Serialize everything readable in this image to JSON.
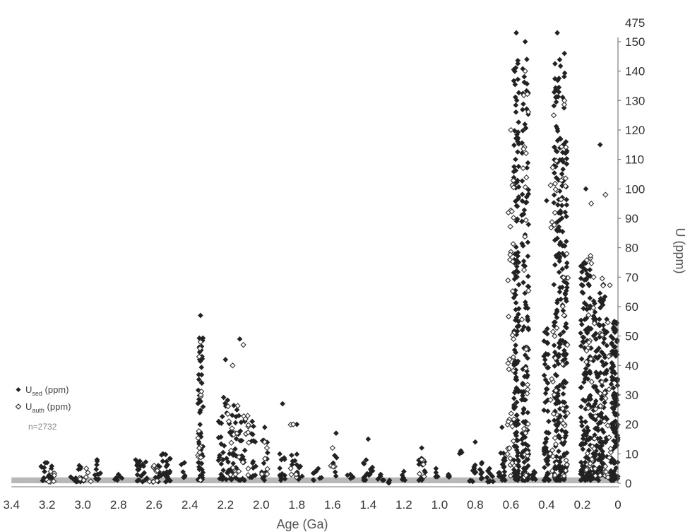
{
  "chart_data": {
    "type": "scatter",
    "xlabel": "Age (Ga)",
    "ylabel": "U (ppm)",
    "x_reversed": true,
    "xlim": [
      0,
      3.4
    ],
    "ylim": [
      0,
      150
    ],
    "x_ticks": [
      "3.4",
      "3.2",
      "3.0",
      "2.8",
      "2.6",
      "2.4",
      "2.2",
      "2.0",
      "1.8",
      "1.6",
      "1.4",
      "1.2",
      "1.0",
      "0.8",
      "0.6",
      "0.4",
      "0.2",
      "0"
    ],
    "y_ticks": [
      "0",
      "10",
      "20",
      "30",
      "40",
      "50",
      "60",
      "70",
      "80",
      "90",
      "100",
      "110",
      "120",
      "130",
      "140",
      "150"
    ],
    "y_break_label": "475",
    "y_axis_side": "right",
    "background_band": {
      "y_from": 0,
      "y_to": 2,
      "color": "#b8b8b8"
    },
    "legend": {
      "position": "left",
      "entries": [
        {
          "prefix": "U",
          "sub": "sed",
          "suffix": " (ppm)",
          "marker": "filled-diamond"
        },
        {
          "prefix": "U",
          "sub": "auth",
          "suffix": " (ppm)",
          "marker": "open-diamond"
        }
      ],
      "n_label": "n=2732"
    },
    "series": [
      {
        "name": "Used (ppm)",
        "marker": "filled-diamond",
        "color": "#222222",
        "clusters": [
          {
            "age": 3.2,
            "spread": 0.04,
            "n": 18,
            "min": 0.5,
            "max": 7,
            "max_pt": 7
          },
          {
            "age": 3.02,
            "spread": 0.05,
            "n": 14,
            "min": 0.5,
            "max": 6,
            "max_pt": 6
          },
          {
            "age": 2.92,
            "spread": 0.02,
            "n": 10,
            "min": 0.5,
            "max": 8,
            "max_pt": 8
          },
          {
            "age": 2.8,
            "spread": 0.02,
            "n": 6,
            "min": 0.5,
            "max": 3,
            "max_pt": 3
          },
          {
            "age": 2.68,
            "spread": 0.04,
            "n": 20,
            "min": 0.5,
            "max": 8,
            "max_pt": 7.5
          },
          {
            "age": 2.55,
            "spread": 0.05,
            "n": 30,
            "min": 0.5,
            "max": 10,
            "max_pt": 10
          },
          {
            "age": 2.43,
            "spread": 0.02,
            "n": 6,
            "min": 1,
            "max": 7,
            "max_pt": 7
          },
          {
            "age": 2.34,
            "spread": 0.015,
            "n": 55,
            "min": 1,
            "max": 50,
            "max_pt": 57
          },
          {
            "age": 2.2,
            "spread": 0.04,
            "n": 45,
            "min": 1,
            "max": 30,
            "max_pt": 42
          },
          {
            "age": 2.12,
            "spread": 0.04,
            "n": 40,
            "min": 1,
            "max": 28,
            "max_pt": 49
          },
          {
            "age": 2.05,
            "spread": 0.02,
            "n": 15,
            "min": 2,
            "max": 20,
            "max_pt": 21
          },
          {
            "age": 1.98,
            "spread": 0.02,
            "n": 12,
            "min": 1,
            "max": 19,
            "max_pt": 19
          },
          {
            "age": 1.88,
            "spread": 0.02,
            "n": 12,
            "min": 1,
            "max": 10,
            "max_pt": 27
          },
          {
            "age": 1.8,
            "spread": 0.03,
            "n": 14,
            "min": 1,
            "max": 10,
            "max_pt": 20
          },
          {
            "age": 1.68,
            "spread": 0.03,
            "n": 8,
            "min": 1,
            "max": 6,
            "max_pt": 5
          },
          {
            "age": 1.58,
            "spread": 0.02,
            "n": 6,
            "min": 2,
            "max": 10,
            "max_pt": 17
          },
          {
            "age": 1.5,
            "spread": 0.02,
            "n": 4,
            "min": 1,
            "max": 3,
            "max_pt": 3
          },
          {
            "age": 1.4,
            "spread": 0.03,
            "n": 16,
            "min": 1,
            "max": 10,
            "max_pt": 15
          },
          {
            "age": 1.33,
            "spread": 0.02,
            "n": 5,
            "min": 1,
            "max": 3,
            "max_pt": 3
          },
          {
            "age": 1.28,
            "spread": 0.01,
            "n": 4,
            "min": 0,
            "max": 1,
            "max_pt": 1
          },
          {
            "age": 1.2,
            "spread": 0.01,
            "n": 4,
            "min": 1,
            "max": 4,
            "max_pt": 4
          },
          {
            "age": 1.1,
            "spread": 0.02,
            "n": 14,
            "min": 1,
            "max": 10,
            "max_pt": 12
          },
          {
            "age": 1.02,
            "spread": 0.01,
            "n": 4,
            "min": 2,
            "max": 5,
            "max_pt": 5
          },
          {
            "age": 0.95,
            "spread": 0.01,
            "n": 3,
            "min": 2,
            "max": 3,
            "max_pt": 3
          },
          {
            "age": 0.88,
            "spread": 0.01,
            "n": 3,
            "min": 10,
            "max": 11,
            "max_pt": 11
          },
          {
            "age": 0.8,
            "spread": 0.04,
            "n": 18,
            "min": 0.5,
            "max": 8,
            "max_pt": 14
          },
          {
            "age": 0.72,
            "spread": 0.02,
            "n": 10,
            "min": 0.5,
            "max": 5,
            "max_pt": 5
          },
          {
            "age": 0.65,
            "spread": 0.02,
            "n": 20,
            "min": 1,
            "max": 12,
            "max_pt": 19
          },
          {
            "age": 0.57,
            "spread": 0.015,
            "n": 150,
            "min": 1,
            "max": 150,
            "max_pt": 153
          },
          {
            "age": 0.52,
            "spread": 0.02,
            "n": 130,
            "min": 1,
            "max": 145,
            "max_pt": 150
          },
          {
            "age": 0.47,
            "spread": 0.015,
            "n": 8,
            "min": 1,
            "max": 4,
            "max_pt": 4
          },
          {
            "age": 0.4,
            "spread": 0.015,
            "n": 60,
            "min": 1,
            "max": 60,
            "max_pt": 96
          },
          {
            "age": 0.34,
            "spread": 0.02,
            "n": 160,
            "min": 1,
            "max": 145,
            "max_pt": 153
          },
          {
            "age": 0.3,
            "spread": 0.015,
            "n": 110,
            "min": 1,
            "max": 140,
            "max_pt": 146
          },
          {
            "age": 0.18,
            "spread": 0.03,
            "n": 150,
            "min": 1,
            "max": 75,
            "max_pt": 100
          },
          {
            "age": 0.1,
            "spread": 0.04,
            "n": 160,
            "min": 1,
            "max": 65,
            "max_pt": 115
          },
          {
            "age": 0.02,
            "spread": 0.02,
            "n": 120,
            "min": 1,
            "max": 55,
            "max_pt": 55
          }
        ]
      },
      {
        "name": "Uauth (ppm)",
        "marker": "open-diamond",
        "color": "#333333",
        "clusters": [
          {
            "age": 3.18,
            "spread": 0.03,
            "n": 6,
            "min": 0.5,
            "max": 4,
            "max_pt": 4
          },
          {
            "age": 2.98,
            "spread": 0.04,
            "n": 6,
            "min": 0.5,
            "max": 5,
            "max_pt": 5
          },
          {
            "age": 2.6,
            "spread": 0.04,
            "n": 8,
            "min": 0.5,
            "max": 6,
            "max_pt": 6
          },
          {
            "age": 2.34,
            "spread": 0.015,
            "n": 14,
            "min": 1,
            "max": 48,
            "max_pt": 48
          },
          {
            "age": 2.16,
            "spread": 0.03,
            "n": 16,
            "min": 2,
            "max": 30,
            "max_pt": 40
          },
          {
            "age": 2.1,
            "spread": 0.03,
            "n": 14,
            "min": 2,
            "max": 25,
            "max_pt": 47
          },
          {
            "age": 1.98,
            "spread": 0.02,
            "n": 5,
            "min": 3,
            "max": 14,
            "max_pt": 14
          },
          {
            "age": 1.82,
            "spread": 0.02,
            "n": 5,
            "min": 2,
            "max": 20,
            "max_pt": 20
          },
          {
            "age": 1.6,
            "spread": 0.02,
            "n": 3,
            "min": 5,
            "max": 12,
            "max_pt": 12
          },
          {
            "age": 1.1,
            "spread": 0.02,
            "n": 4,
            "min": 2,
            "max": 8,
            "max_pt": 8
          },
          {
            "age": 0.6,
            "spread": 0.02,
            "n": 40,
            "min": 2,
            "max": 110,
            "max_pt": 120
          },
          {
            "age": 0.52,
            "spread": 0.02,
            "n": 30,
            "min": 2,
            "max": 140,
            "max_pt": 140
          },
          {
            "age": 0.36,
            "spread": 0.02,
            "n": 30,
            "min": 2,
            "max": 120,
            "max_pt": 125
          },
          {
            "age": 0.3,
            "spread": 0.02,
            "n": 30,
            "min": 2,
            "max": 130,
            "max_pt": 130
          },
          {
            "age": 0.15,
            "spread": 0.03,
            "n": 30,
            "min": 2,
            "max": 80,
            "max_pt": 95
          },
          {
            "age": 0.07,
            "spread": 0.03,
            "n": 30,
            "min": 2,
            "max": 70,
            "max_pt": 98
          }
        ]
      }
    ]
  }
}
